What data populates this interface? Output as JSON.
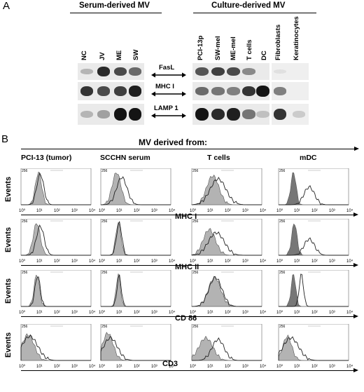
{
  "panel_a": {
    "letter": "A",
    "serum_title": "Serum-derived MV",
    "culture_title": "Culture-derived MV",
    "serum_lanes": [
      "NC",
      "JV",
      "ME",
      "SW"
    ],
    "culture_lanes": [
      "PCI-13p",
      "SW-mel",
      "ME-mel",
      "T cells",
      "DC"
    ],
    "extra_lanes": [
      "Fibroblasts",
      "Keratinocytes"
    ],
    "proteins": [
      "FasL",
      "MHC I",
      "LAMP 1"
    ]
  },
  "panel_b": {
    "letter": "B",
    "title": "MV derived from:",
    "columns": [
      "PCI-13 (tumor)",
      "SCCHN serum",
      "T cells",
      "mDC"
    ],
    "y_label": "Events",
    "y_max": "256",
    "x_ticks": [
      "10⁰",
      "10¹",
      "10²",
      "10³",
      "10⁴"
    ],
    "markers": [
      "MHC I",
      "MHC II",
      "CD 86",
      "CD3"
    ]
  },
  "colors": {
    "band": "#1a1a1a",
    "blot_bg": "#e6e6e6",
    "shaded": "#aaaaaa"
  }
}
